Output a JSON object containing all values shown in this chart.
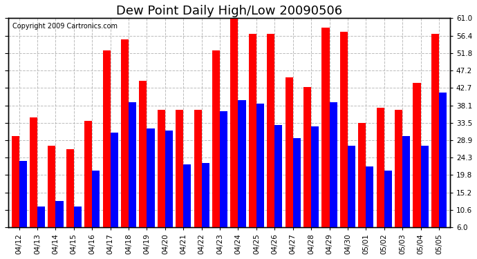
{
  "title": "Dew Point Daily High/Low 20090506",
  "copyright": "Copyright 2009 Cartronics.com",
  "categories": [
    "04/12",
    "04/13",
    "04/14",
    "04/15",
    "04/16",
    "04/17",
    "04/18",
    "04/19",
    "04/20",
    "04/21",
    "04/22",
    "04/23",
    "04/24",
    "04/25",
    "04/26",
    "04/27",
    "04/28",
    "04/29",
    "04/30",
    "05/01",
    "05/02",
    "05/03",
    "05/04",
    "05/05"
  ],
  "highs": [
    30.0,
    35.0,
    27.5,
    26.5,
    34.0,
    52.5,
    55.5,
    44.5,
    37.0,
    37.0,
    37.0,
    52.5,
    61.0,
    57.0,
    57.0,
    45.5,
    43.0,
    58.5,
    57.5,
    33.5,
    37.5,
    37.0,
    44.0,
    57.0
  ],
  "lows": [
    23.5,
    11.5,
    13.0,
    11.5,
    21.0,
    31.0,
    39.0,
    32.0,
    31.5,
    22.5,
    23.0,
    36.5,
    39.5,
    38.5,
    33.0,
    29.5,
    32.5,
    39.0,
    27.5,
    22.0,
    21.0,
    30.0,
    27.5,
    41.5
  ],
  "high_color": "#ff0000",
  "low_color": "#0000ff",
  "bg_color": "#ffffff",
  "grid_color": "#bbbbbb",
  "ylim_min": 6.0,
  "ylim_max": 61.0,
  "yticks": [
    6.0,
    10.6,
    15.2,
    19.8,
    24.3,
    28.9,
    33.5,
    38.1,
    42.7,
    47.2,
    51.8,
    56.4,
    61.0
  ],
  "bar_width": 0.42,
  "title_fontsize": 13,
  "tick_fontsize": 7.5,
  "copyright_fontsize": 7
}
